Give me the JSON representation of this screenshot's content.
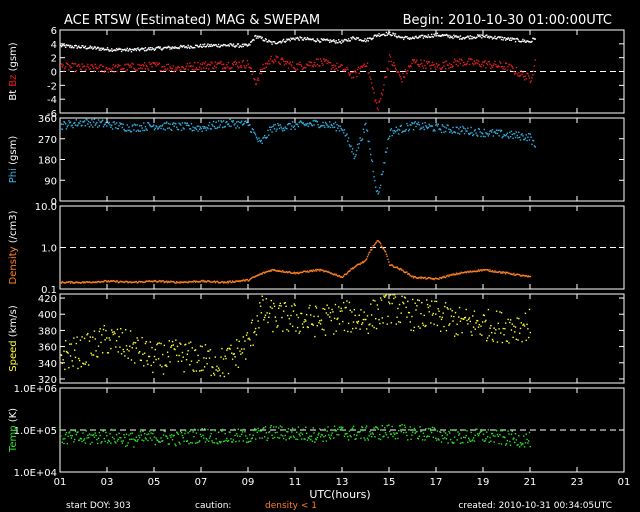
{
  "header": {
    "title": "ACE RTSW (Estimated) MAG & SWEPAM",
    "begin": "Begin: 2010-10-30 01:00:00UTC"
  },
  "footer": {
    "start_doy": "start DOY: 303",
    "caution": "caution:",
    "density_note": "density < 1",
    "created": "created: 2010-10-31 00:34:05UTC"
  },
  "colors": {
    "bt": "#ffffff",
    "bz": "#e02020",
    "phi": "#30b0e0",
    "density": "#ff8020",
    "speed": "#ffff30",
    "temp": "#30e030",
    "frame": "#ffffff"
  },
  "chart_data": [
    {
      "type": "scatter",
      "panel": "mag",
      "ylabel_parts": [
        "Bt",
        "Bz",
        "(gsm)"
      ],
      "ylim": [
        -6,
        6
      ],
      "yticks": [
        "6",
        "4",
        "2",
        "0",
        "-2",
        "-4",
        "-6"
      ],
      "series": [
        {
          "name": "Bt",
          "x": [
            1,
            2,
            3,
            4,
            5,
            6,
            7,
            8,
            9,
            9.3,
            9.6,
            10,
            11,
            12,
            13,
            13.5,
            14,
            14.5,
            15,
            15.5,
            16,
            17,
            18,
            19,
            20,
            21,
            21.2
          ],
          "y": [
            3.8,
            3.6,
            3.3,
            3.2,
            3.4,
            3.6,
            3.8,
            3.9,
            3.8,
            5.2,
            4.8,
            4.2,
            4.9,
            4.6,
            4.4,
            5.0,
            4.6,
            5.4,
            5.6,
            5.0,
            4.9,
            5.4,
            5.0,
            5.2,
            4.8,
            4.4,
            5.0
          ]
        },
        {
          "name": "Bz",
          "x": [
            1,
            2,
            3,
            4,
            5,
            6,
            7,
            8,
            9,
            9.3,
            9.6,
            10,
            11,
            12,
            13,
            13.5,
            14,
            14.5,
            15,
            15.5,
            16,
            17,
            18,
            19,
            20,
            21,
            21.2
          ],
          "y": [
            0.8,
            0.6,
            0.5,
            0.7,
            0.9,
            0.6,
            1.0,
            1.1,
            1.2,
            -1.5,
            0.5,
            2.0,
            0.8,
            1.5,
            0.5,
            -0.5,
            1.5,
            -5.5,
            2.0,
            -1.0,
            1.5,
            0.8,
            1.5,
            1.2,
            0.8,
            -1.0,
            1.5
          ]
        }
      ]
    },
    {
      "type": "scatter",
      "panel": "phi",
      "ylabel_parts": [
        "Phi",
        "(gsm)"
      ],
      "ylim": [
        0,
        360
      ],
      "yticks": [
        "360",
        "270",
        "180",
        "90",
        "0"
      ],
      "series": [
        {
          "name": "Phi",
          "x": [
            1,
            2,
            3,
            4,
            5,
            6,
            7,
            8,
            9,
            9.5,
            10,
            11,
            12,
            13,
            13.5,
            14,
            14.5,
            15,
            16,
            17,
            18,
            19,
            20,
            21,
            21.2
          ],
          "y": [
            330,
            345,
            335,
            320,
            330,
            325,
            320,
            340,
            335,
            250,
            320,
            330,
            340,
            320,
            200,
            330,
            20,
            300,
            330,
            320,
            310,
            300,
            290,
            280,
            230
          ]
        }
      ]
    },
    {
      "type": "scatter",
      "panel": "density",
      "ylabel_parts": [
        "Density",
        "(/cm3)"
      ],
      "yscale": "log",
      "ylim": [
        0.1,
        10
      ],
      "yticks": [
        "10.0",
        "1.0",
        "0.1"
      ],
      "series": [
        {
          "name": "Density",
          "x": [
            1,
            2,
            3,
            4,
            5,
            6,
            7,
            8,
            9,
            10,
            11,
            12,
            13,
            14,
            14.5,
            15,
            16,
            17,
            18,
            19,
            20,
            21
          ],
          "y": [
            0.15,
            0.15,
            0.16,
            0.15,
            0.16,
            0.15,
            0.16,
            0.15,
            0.17,
            0.3,
            0.25,
            0.3,
            0.2,
            0.5,
            1.5,
            0.4,
            0.2,
            0.18,
            0.25,
            0.3,
            0.25,
            0.2
          ]
        }
      ]
    },
    {
      "type": "scatter",
      "panel": "speed",
      "ylabel_parts": [
        "Speed",
        "(km/s)"
      ],
      "ylim": [
        315,
        425
      ],
      "yticks": [
        "420",
        "400",
        "380",
        "360",
        "340",
        "320"
      ],
      "series": [
        {
          "name": "Speed",
          "x": [
            1,
            2,
            3,
            4,
            5,
            6,
            7,
            8,
            9,
            9.5,
            10,
            11,
            12,
            13,
            14,
            15,
            16,
            17,
            18,
            19,
            20,
            21
          ],
          "y": [
            350,
            355,
            370,
            360,
            345,
            350,
            345,
            340,
            365,
            405,
            398,
            395,
            392,
            398,
            395,
            410,
            400,
            398,
            390,
            388,
            385,
            388
          ]
        }
      ]
    },
    {
      "type": "scatter",
      "panel": "temp",
      "ylabel_parts": [
        "Temp",
        "(K)"
      ],
      "yscale": "log",
      "ylim": [
        10000,
        1000000
      ],
      "yticks": [
        "1.0E+06",
        "1.0E+05",
        "1.0E+04"
      ],
      "series": [
        {
          "name": "Temp",
          "x": [
            1,
            2,
            3,
            4,
            5,
            6,
            7,
            8,
            9,
            10,
            11,
            12,
            13,
            14,
            15,
            16,
            17,
            18,
            19,
            20,
            21
          ],
          "y": [
            70000,
            65000,
            75000,
            60000,
            70000,
            65000,
            80000,
            70000,
            75000,
            90000,
            85000,
            80000,
            90000,
            85000,
            95000,
            90000,
            80000,
            70000,
            75000,
            65000,
            60000
          ]
        }
      ]
    }
  ],
  "x_axis": {
    "label": "UTC(hours)",
    "range": [
      1,
      25
    ],
    "ticks": [
      "01",
      "03",
      "05",
      "07",
      "09",
      "11",
      "13",
      "15",
      "17",
      "19",
      "21",
      "23",
      "01"
    ]
  }
}
